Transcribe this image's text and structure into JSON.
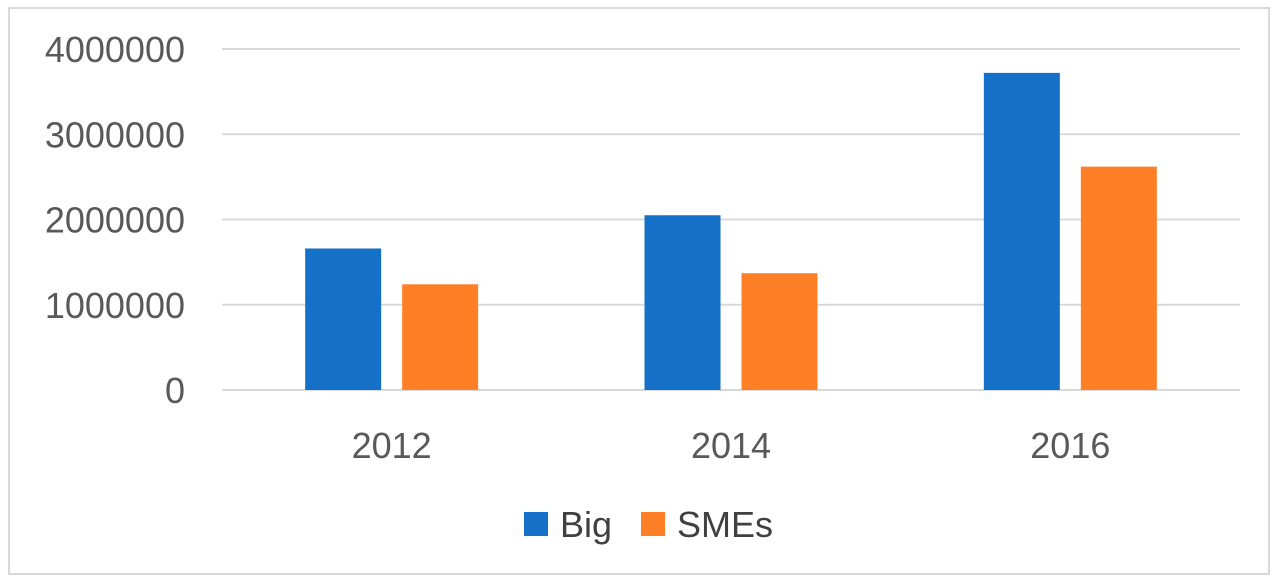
{
  "chart_data": {
    "type": "bar",
    "categories": [
      "2012",
      "2014",
      "2016"
    ],
    "series": [
      {
        "name": "Big",
        "values": [
          1660000,
          2050000,
          3720000
        ],
        "color": "#1570c8"
      },
      {
        "name": "SMEs",
        "values": [
          1240000,
          1370000,
          2620000
        ],
        "color": "#ff7f27"
      }
    ],
    "ylim": [
      0,
      4000000
    ],
    "yticks": [
      0,
      1000000,
      2000000,
      3000000,
      4000000
    ],
    "ytick_labels": [
      "0",
      "1000000",
      "2000000",
      "3000000",
      "4000000"
    ],
    "grid": true,
    "legend_position": "bottom",
    "title": "",
    "xlabel": "",
    "ylabel": ""
  }
}
